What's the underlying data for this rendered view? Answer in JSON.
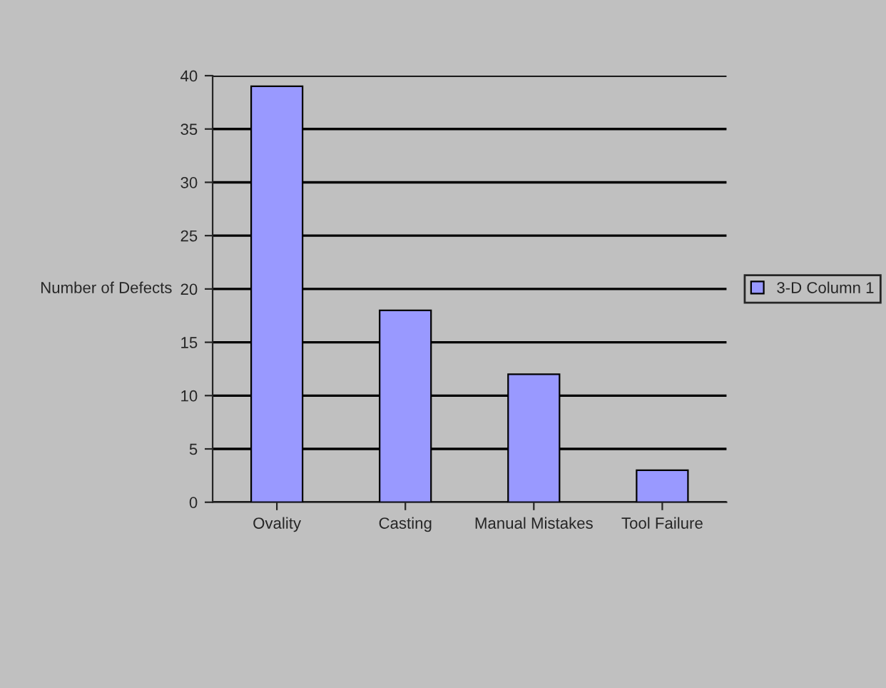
{
  "chart_data": {
    "type": "bar",
    "ylabel": "Number of Defects",
    "categories": [
      "Ovality",
      "Casting",
      "Manual Mistakes",
      "Tool Failure"
    ],
    "series": [
      {
        "name": "3-D Column 1",
        "color": "#9999ff",
        "values": [
          39,
          18,
          12,
          3
        ]
      }
    ],
    "ylim": [
      0,
      40
    ],
    "yticks": [
      0,
      5,
      10,
      15,
      20,
      25,
      30,
      35,
      40
    ],
    "grid": "y",
    "legend": "right"
  }
}
